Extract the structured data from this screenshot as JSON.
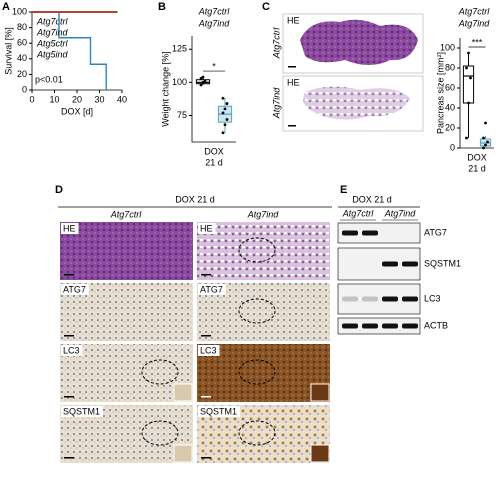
{
  "panel_labels": [
    "A",
    "B",
    "C",
    "D",
    "E"
  ],
  "chart_data": [
    {
      "type": "line",
      "ylabel": "Survival [%]",
      "xlabel": "DOX [d]",
      "annotation": "p<0.01",
      "xlim": [
        0,
        40
      ],
      "xticks": [
        0,
        10,
        20,
        30,
        40
      ],
      "ylim": [
        0,
        100
      ],
      "yticks": [
        0,
        20,
        40,
        60,
        80,
        100
      ],
      "series": [
        {
          "name": "Atg7ctrl",
          "color": "#000000",
          "x": [
            0,
            38
          ],
          "values": [
            100,
            100
          ]
        },
        {
          "name": "Atg7ind",
          "color": "#2e86c1",
          "x": [
            0,
            12,
            12,
            26,
            26,
            33,
            33
          ],
          "values": [
            100,
            100,
            67,
            67,
            33,
            33,
            0
          ]
        },
        {
          "name": "Atg5ctrl",
          "color": "#2e9e44",
          "x": [
            0,
            38
          ],
          "values": [
            100,
            100
          ]
        },
        {
          "name": "Atg5ind",
          "color": "#d62728",
          "x": [
            0,
            38
          ],
          "values": [
            100,
            100
          ]
        }
      ]
    },
    {
      "type": "box",
      "ylabel": "Weight change [%]",
      "xlabel": [
        "DOX",
        "21 d"
      ],
      "annotation": "*",
      "ylim": [
        55,
        135
      ],
      "yticks": [
        75,
        100,
        125
      ],
      "series": [
        {
          "name": "Atg7ctrl",
          "color": "#000000",
          "whisker_low": 98,
          "q1": 99,
          "median": 100,
          "q3": 102,
          "whisker_high": 104,
          "points": [
            98,
            100,
            101,
            103,
            104
          ]
        },
        {
          "name": "Atg7ind",
          "color": "#2e86c1",
          "whisker_low": 62,
          "q1": 70,
          "median": 76,
          "q3": 82,
          "whisker_high": 88,
          "points": [
            62,
            68,
            72,
            77,
            80,
            84,
            88
          ]
        }
      ]
    },
    {
      "type": "box",
      "ylabel": "Pancreas size [mm²]",
      "xlabel": [
        "DOX",
        "21 d"
      ],
      "annotation": "***",
      "ylim": [
        0,
        110
      ],
      "yticks": [
        0,
        20,
        40,
        60,
        80,
        100
      ],
      "series": [
        {
          "name": "Atg7ctrl",
          "color": "#000000",
          "whisker_low": 10,
          "q1": 45,
          "median": 72,
          "q3": 82,
          "whisker_high": 95,
          "points": [
            10,
            45,
            70,
            80,
            95
          ]
        },
        {
          "name": "Atg7ind",
          "color": "#2e86c1",
          "whisker_low": 0,
          "q1": 2,
          "median": 5,
          "q3": 9,
          "whisker_high": 12,
          "points": [
            0,
            3,
            6,
            10,
            25
          ]
        }
      ]
    }
  ],
  "overview": {
    "stain": "HE",
    "rows": [
      "Atg7ctrl",
      "Atg7ind"
    ]
  },
  "histology": {
    "header": "DOX 21 d",
    "columns": [
      "Atg7ctrl",
      "Atg7ind"
    ],
    "rows": [
      "HE",
      "ATG7",
      "LC3",
      "SQSTM1"
    ]
  },
  "blot": {
    "header": "DOX 21 d",
    "groups": [
      "Atg7ctrl",
      "Atg7ind"
    ],
    "bands": [
      "ATG7",
      "SQSTM1",
      "LC3",
      "ACTB"
    ]
  }
}
